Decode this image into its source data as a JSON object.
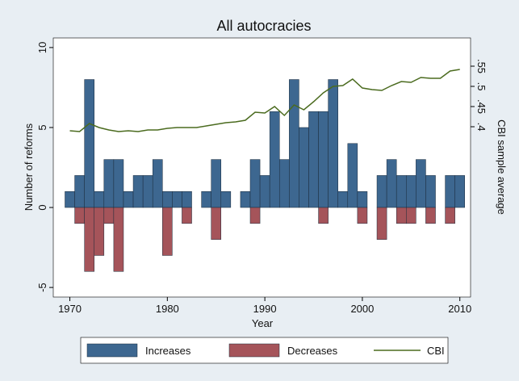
{
  "chart_data": {
    "type": "bar-line",
    "title": "All autocracies",
    "x_label": "Year",
    "y_label": "Number of reforms",
    "y2_label": "CBI sample average",
    "x": [
      1970,
      1971,
      1972,
      1973,
      1974,
      1975,
      1976,
      1977,
      1978,
      1979,
      1980,
      1981,
      1982,
      1983,
      1984,
      1985,
      1986,
      1987,
      1988,
      1989,
      1990,
      1991,
      1992,
      1993,
      1994,
      1995,
      1996,
      1997,
      1998,
      1999,
      2000,
      2001,
      2002,
      2003,
      2004,
      2005,
      2006,
      2007,
      2008,
      2009,
      2010
    ],
    "series": [
      {
        "name": "Increases",
        "type": "bar",
        "color": "#3d6790",
        "values": [
          1,
          2,
          8,
          1,
          3,
          3,
          1,
          2,
          2,
          3,
          1,
          1,
          1,
          0,
          1,
          3,
          1,
          0,
          1,
          3,
          2,
          6,
          3,
          8,
          5,
          6,
          6,
          8,
          1,
          4,
          1,
          0,
          2,
          3,
          2,
          2,
          3,
          2,
          0,
          2,
          2
        ]
      },
      {
        "name": "Decreases",
        "type": "bar",
        "color": "#a5545a",
        "values": [
          0,
          -1,
          -4,
          -3,
          -1,
          -4,
          0,
          0,
          0,
          0,
          -3,
          0,
          -1,
          0,
          0,
          -2,
          0,
          0,
          0,
          -1,
          0,
          0,
          0,
          0,
          0,
          0,
          -1,
          0,
          0,
          0,
          -1,
          0,
          -2,
          0,
          -1,
          -1,
          0,
          -1,
          0,
          -1,
          0
        ]
      },
      {
        "name": "CBI",
        "type": "line",
        "axis": "y2",
        "color": "#4b6b1f",
        "values": [
          0.39,
          0.388,
          0.408,
          0.398,
          0.392,
          0.388,
          0.39,
          0.388,
          0.392,
          0.392,
          0.396,
          0.398,
          0.398,
          0.398,
          0.402,
          0.406,
          0.41,
          0.412,
          0.416,
          0.436,
          0.434,
          0.45,
          0.428,
          0.454,
          0.442,
          0.462,
          0.484,
          0.5,
          0.502,
          0.518,
          0.496,
          0.492,
          0.49,
          0.502,
          0.512,
          0.51,
          0.522,
          0.52,
          0.52,
          0.538,
          0.542
        ]
      }
    ],
    "xlim": [
      1968.3,
      2011.1
    ],
    "xticks": [
      1970,
      1980,
      1990,
      2000,
      2010
    ],
    "ylim": [
      -5.6,
      10.6
    ],
    "yticks": [
      -5,
      0,
      5,
      10
    ],
    "y2lim": [
      -0.022,
      0.62
    ],
    "y2ticks": [
      {
        "value": 0.4,
        "label": ".4"
      },
      {
        "value": 0.45,
        "label": ".45"
      },
      {
        "value": 0.5,
        "label": ".5"
      },
      {
        "value": 0.55,
        "label": ".55"
      }
    ],
    "legend": "bottom"
  }
}
